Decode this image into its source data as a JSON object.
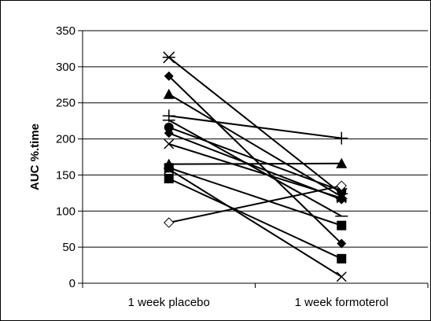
{
  "chart_data": {
    "type": "line",
    "title": "",
    "xlabel": "",
    "ylabel": "AUC %.time",
    "categories": [
      "1 week placebo",
      "1 week formoterol"
    ],
    "ylim": [
      0,
      350
    ],
    "yticks": [
      0,
      50,
      100,
      150,
      200,
      250,
      300,
      350
    ],
    "grid": "horizontal",
    "legend": "none",
    "series": [
      {
        "marker": "star",
        "values": [
          313,
          124
        ]
      },
      {
        "marker": "diamond-filled",
        "values": [
          287,
          55
        ]
      },
      {
        "marker": "triangle-filled",
        "values": [
          262,
          120
        ]
      },
      {
        "marker": "plus",
        "values": [
          232,
          201
        ]
      },
      {
        "marker": "circle-filled",
        "values": [
          216,
          128
        ]
      },
      {
        "marker": "diamond-filled",
        "values": [
          208,
          116
        ]
      },
      {
        "marker": "x",
        "values": [
          193,
          118
        ]
      },
      {
        "marker": "triangle-filled",
        "values": [
          165,
          166
        ]
      },
      {
        "marker": "square-filled",
        "values": [
          160,
          80
        ]
      },
      {
        "marker": "square-filled",
        "values": [
          145,
          34
        ]
      },
      {
        "marker": "x",
        "values": [
          158,
          9
        ]
      },
      {
        "marker": "diamond-open",
        "values": [
          84,
          135
        ]
      },
      {
        "marker": "dash",
        "values": [
          226,
          93
        ]
      }
    ],
    "colors": {
      "line": "#000000",
      "grid": "#000000",
      "background": "#ffffff"
    }
  }
}
